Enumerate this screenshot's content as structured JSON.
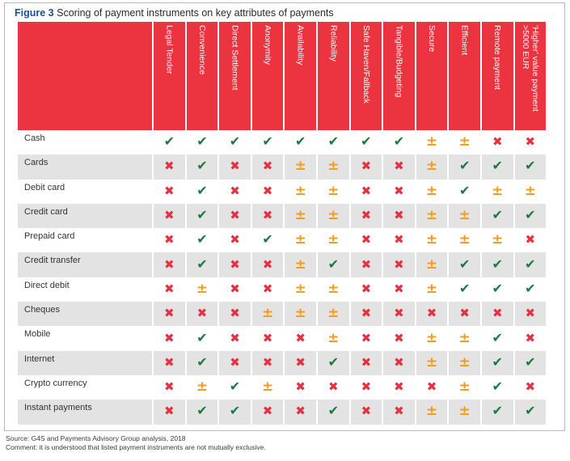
{
  "figure": {
    "label": "Figure 3",
    "title": "Scoring of payment instruments on key attributes of payments"
  },
  "symbols": {
    "yes": "✔",
    "no": "✖",
    "partial": "±"
  },
  "colors": {
    "header": "#ec3340",
    "yes": "#1b7a3f",
    "no": "#e53140",
    "partial": "#f39c1f",
    "stripe": "#e3e3e3"
  },
  "columns": [
    "Legal Tender",
    "Convenience",
    "Direct Settlement",
    "Anonymity",
    "Availability",
    "Reliability",
    "Safe Haven/Fallback",
    "Tangible/Budgeting",
    "Secure",
    "Efficient",
    "Remote payment",
    "‘Higher’ value payment >5000 EUR"
  ],
  "rows": [
    {
      "label": "Cash",
      "values": [
        "yes",
        "yes",
        "yes",
        "yes",
        "yes",
        "yes",
        "yes",
        "yes",
        "partial",
        "partial",
        "no",
        "no"
      ]
    },
    {
      "label": "Cards",
      "values": [
        "no",
        "yes",
        "no",
        "no",
        "partial",
        "partial",
        "no",
        "no",
        "partial",
        "yes",
        "yes",
        "yes"
      ]
    },
    {
      "label": "Debit card",
      "values": [
        "no",
        "yes",
        "no",
        "no",
        "partial",
        "partial",
        "no",
        "no",
        "partial",
        "yes",
        "partial",
        "partial"
      ]
    },
    {
      "label": "Credit card",
      "values": [
        "no",
        "yes",
        "no",
        "no",
        "partial",
        "partial",
        "no",
        "no",
        "partial",
        "partial",
        "yes",
        "yes"
      ]
    },
    {
      "label": "Prepaid card",
      "values": [
        "no",
        "yes",
        "no",
        "yes",
        "partial",
        "partial",
        "no",
        "no",
        "partial",
        "partial",
        "partial",
        "no"
      ]
    },
    {
      "label": "Credit transfer",
      "values": [
        "no",
        "yes",
        "no",
        "no",
        "partial",
        "yes",
        "no",
        "no",
        "partial",
        "yes",
        "yes",
        "yes"
      ]
    },
    {
      "label": "Direct debit",
      "values": [
        "no",
        "partial",
        "no",
        "no",
        "partial",
        "partial",
        "no",
        "no",
        "partial",
        "yes",
        "yes",
        "yes"
      ]
    },
    {
      "label": "Cheques",
      "values": [
        "no",
        "no",
        "no",
        "partial",
        "partial",
        "partial",
        "no",
        "no",
        "no",
        "no",
        "no",
        "no"
      ]
    },
    {
      "label": "Mobile",
      "values": [
        "no",
        "yes",
        "no",
        "no",
        "no",
        "partial",
        "no",
        "no",
        "partial",
        "partial",
        "yes",
        "no"
      ]
    },
    {
      "label": "Internet",
      "values": [
        "no",
        "yes",
        "no",
        "no",
        "no",
        "yes",
        "no",
        "no",
        "partial",
        "partial",
        "yes",
        "yes"
      ]
    },
    {
      "label": "Crypto currency",
      "values": [
        "no",
        "partial",
        "yes",
        "partial",
        "no",
        "no",
        "no",
        "no",
        "no",
        "partial",
        "yes",
        "no"
      ]
    },
    {
      "label": "Instant payments",
      "values": [
        "no",
        "yes",
        "yes",
        "no",
        "no",
        "yes",
        "no",
        "no",
        "partial",
        "partial",
        "yes",
        "yes"
      ]
    }
  ],
  "footer": {
    "source": "Source: G4S and Payments Advisory Group analysis, 2018",
    "comment": "Comment: it is understood that listed payment instruments are not mutually exclusive."
  }
}
